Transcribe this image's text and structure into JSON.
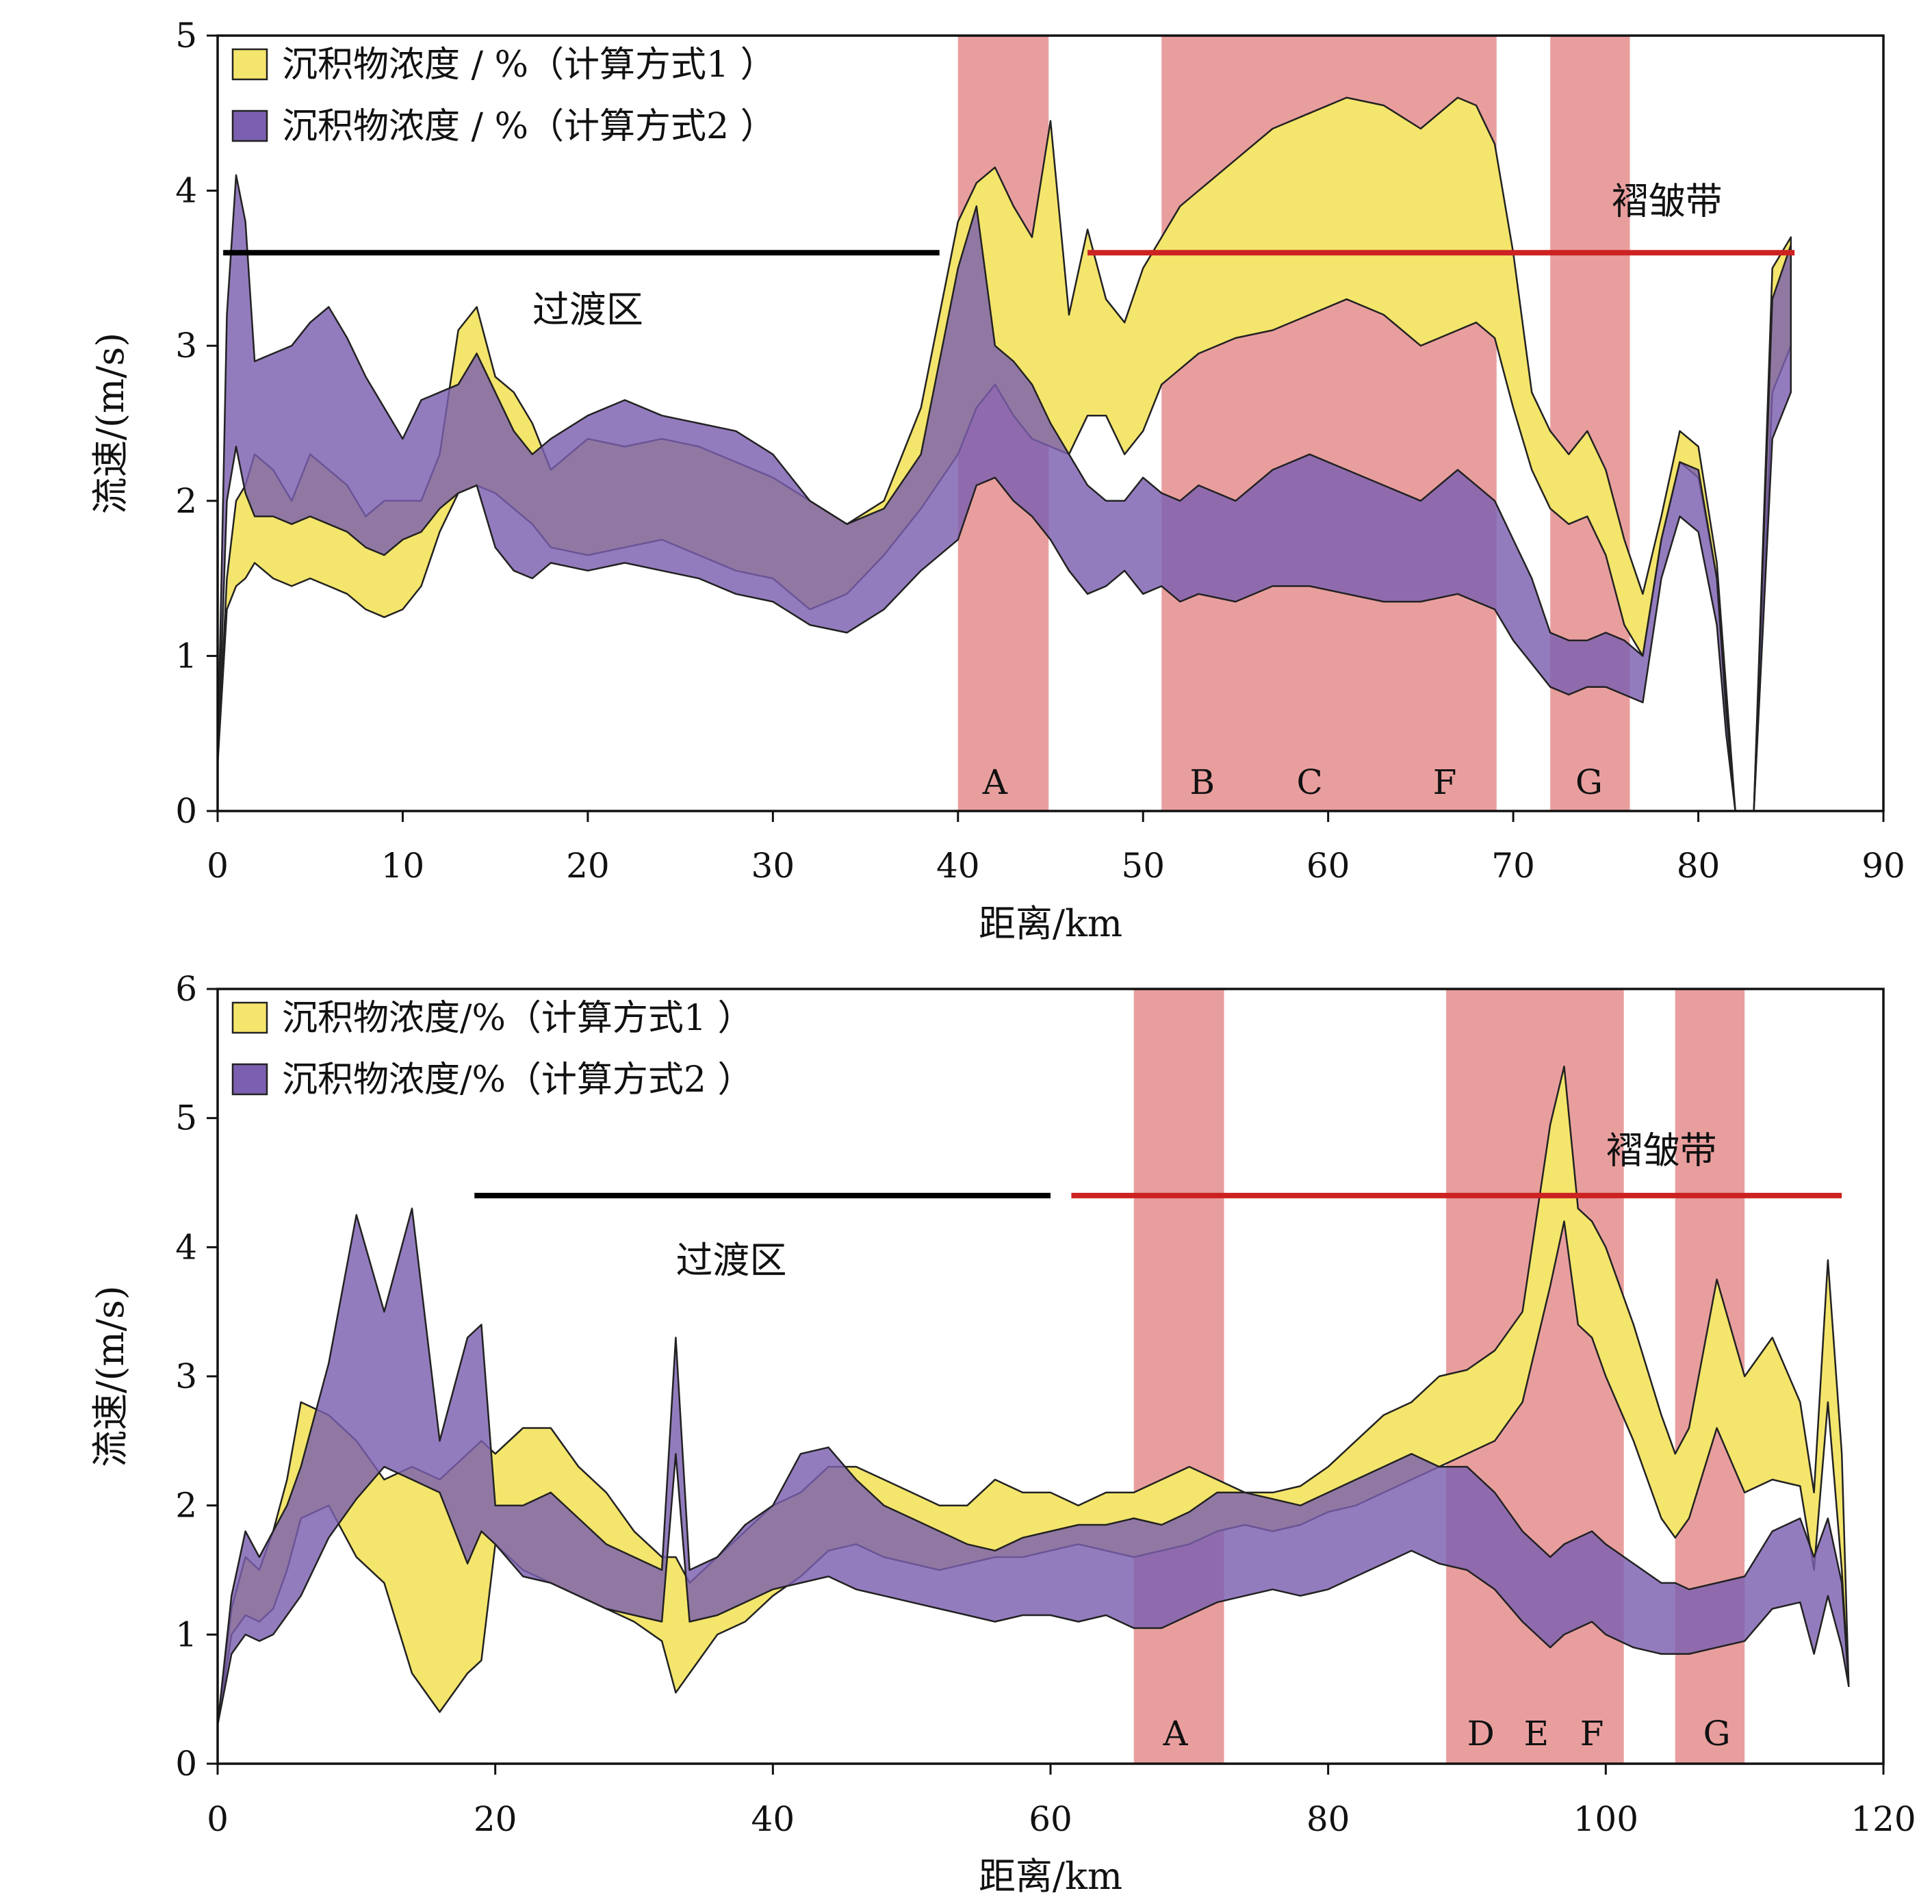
{
  "chart_data": [
    {
      "type": "area",
      "xlabel": "距离/km",
      "ylabel": "流速/(m/s)",
      "xlim": [
        0,
        90
      ],
      "ylim": [
        0,
        5
      ],
      "xticks": [
        0,
        10,
        20,
        30,
        40,
        50,
        60,
        70,
        80,
        90
      ],
      "yticks": [
        0,
        1,
        2,
        3,
        4,
        5
      ],
      "grid": false,
      "legend_position": "top-left",
      "legend": [
        {
          "label": "沉积物浓度 / %（计算方式1 ）",
          "color": "#f4e56c"
        },
        {
          "label": "沉积物浓度 / %（计算方式2 ）",
          "color": "#7b5fb0"
        }
      ],
      "zones": [
        {
          "label": "A",
          "x0": 40.0,
          "x1": 44.9
        },
        {
          "label": "B",
          "x0": 51.0,
          "x1": 69.1
        },
        {
          "label": "G",
          "x0": 72.0,
          "x1": 76.3
        }
      ],
      "zone_labels": [
        {
          "text": "A",
          "x": 42.0
        },
        {
          "text": "B",
          "x": 53.2
        },
        {
          "text": "C",
          "x": 59.0
        },
        {
          "text": "F",
          "x": 66.3
        },
        {
          "text": "G",
          "x": 74.1
        }
      ],
      "ranges": [
        {
          "label": "过渡区",
          "x0": 0.3,
          "x1": 39.0,
          "y": 3.6,
          "color": "#000000",
          "label_x": 20.0,
          "label_y": 3.15
        },
        {
          "label": "褶皱带",
          "x0": 47.0,
          "x1": 85.2,
          "y": 3.6,
          "color": "#cc2222",
          "label_x": 78.3,
          "label_y": 3.85
        }
      ],
      "series": [
        {
          "name": "沉积物浓度 / %（计算方式1 ）",
          "x": [
            0,
            0.5,
            1,
            1.5,
            2,
            3,
            4,
            5,
            6,
            7,
            8,
            9,
            10,
            11,
            12,
            13,
            14,
            15,
            16,
            17,
            18,
            20,
            22,
            24,
            26,
            28,
            30,
            32,
            34,
            36,
            38,
            40,
            41,
            42,
            43,
            44,
            45,
            46,
            47,
            48,
            49,
            50,
            51,
            52,
            53,
            55,
            57,
            59,
            61,
            63,
            65,
            67,
            68,
            69,
            70,
            71,
            72,
            73,
            74,
            75,
            76,
            77,
            78,
            79,
            80,
            81,
            81.5,
            82,
            83,
            84,
            85
          ],
          "upper": [
            0.3,
            1.5,
            2.0,
            2.1,
            2.3,
            2.2,
            2.0,
            2.3,
            2.2,
            2.1,
            1.9,
            2.0,
            2.0,
            2.0,
            2.3,
            3.1,
            3.25,
            2.8,
            2.7,
            2.5,
            2.2,
            2.4,
            2.35,
            2.4,
            2.35,
            2.25,
            2.15,
            2.0,
            1.85,
            2.0,
            2.6,
            3.8,
            4.05,
            4.15,
            3.9,
            3.7,
            4.45,
            3.2,
            3.75,
            3.3,
            3.15,
            3.5,
            3.7,
            3.9,
            4.0,
            4.2,
            4.4,
            4.5,
            4.6,
            4.55,
            4.4,
            4.6,
            4.55,
            4.3,
            3.6,
            2.7,
            2.45,
            2.3,
            2.45,
            2.2,
            1.75,
            1.4,
            1.9,
            2.45,
            2.35,
            1.6,
            0.8,
            0.0,
            0.0,
            3.5,
            3.7
          ],
          "lower": [
            0.3,
            1.3,
            1.45,
            1.5,
            1.6,
            1.5,
            1.45,
            1.5,
            1.45,
            1.4,
            1.3,
            1.25,
            1.3,
            1.45,
            1.8,
            2.05,
            2.1,
            2.05,
            1.95,
            1.85,
            1.7,
            1.65,
            1.7,
            1.75,
            1.65,
            1.55,
            1.5,
            1.3,
            1.4,
            1.65,
            1.95,
            2.3,
            2.6,
            2.75,
            2.55,
            2.4,
            2.35,
            2.3,
            2.55,
            2.55,
            2.3,
            2.45,
            2.75,
            2.85,
            2.95,
            3.05,
            3.1,
            3.2,
            3.3,
            3.2,
            3.0,
            3.1,
            3.15,
            3.05,
            2.6,
            2.2,
            1.95,
            1.85,
            1.9,
            1.65,
            1.2,
            1.0,
            1.75,
            2.25,
            2.15,
            1.5,
            0.7,
            0.0,
            0.0,
            2.7,
            3.0
          ]
        },
        {
          "name": "沉积物浓度 / %（计算方式2 ）",
          "x": [
            0,
            0.5,
            1,
            1.5,
            2,
            3,
            4,
            5,
            6,
            7,
            8,
            9,
            10,
            11,
            12,
            13,
            14,
            15,
            16,
            17,
            18,
            20,
            22,
            24,
            26,
            28,
            30,
            32,
            34,
            36,
            38,
            40,
            41,
            42,
            43,
            44,
            45,
            46,
            47,
            48,
            49,
            50,
            51,
            52,
            53,
            55,
            57,
            59,
            61,
            63,
            65,
            67,
            68,
            69,
            70,
            71,
            72,
            73,
            74,
            75,
            76,
            77,
            78,
            79,
            80,
            81,
            81.5,
            82,
            83,
            84,
            85
          ],
          "upper": [
            0.3,
            3.2,
            4.1,
            3.8,
            2.9,
            2.95,
            3.0,
            3.15,
            3.25,
            3.05,
            2.8,
            2.6,
            2.4,
            2.65,
            2.7,
            2.75,
            2.95,
            2.7,
            2.45,
            2.3,
            2.4,
            2.55,
            2.65,
            2.55,
            2.5,
            2.45,
            2.3,
            2.0,
            1.85,
            1.95,
            2.3,
            3.5,
            3.9,
            3.0,
            2.9,
            2.75,
            2.5,
            2.3,
            2.1,
            2.0,
            2.0,
            2.15,
            2.05,
            2.0,
            2.1,
            2.0,
            2.2,
            2.3,
            2.2,
            2.1,
            2.0,
            2.2,
            2.1,
            2.0,
            1.75,
            1.5,
            1.15,
            1.1,
            1.1,
            1.15,
            1.1,
            1.0,
            1.75,
            2.25,
            2.2,
            1.5,
            0.65,
            0.0,
            0.0,
            3.3,
            3.65
          ],
          "lower": [
            0.3,
            2.0,
            2.35,
            2.05,
            1.9,
            1.9,
            1.85,
            1.9,
            1.85,
            1.8,
            1.7,
            1.65,
            1.75,
            1.8,
            1.95,
            2.05,
            2.1,
            1.7,
            1.55,
            1.5,
            1.6,
            1.55,
            1.6,
            1.55,
            1.5,
            1.4,
            1.35,
            1.2,
            1.15,
            1.3,
            1.55,
            1.75,
            2.1,
            2.15,
            2.0,
            1.9,
            1.75,
            1.55,
            1.4,
            1.45,
            1.55,
            1.4,
            1.45,
            1.35,
            1.4,
            1.35,
            1.45,
            1.45,
            1.4,
            1.35,
            1.35,
            1.4,
            1.35,
            1.3,
            1.1,
            0.95,
            0.8,
            0.75,
            0.8,
            0.8,
            0.75,
            0.7,
            1.5,
            1.9,
            1.8,
            1.2,
            0.5,
            0.0,
            0.0,
            2.4,
            2.7
          ]
        }
      ]
    },
    {
      "type": "area",
      "xlabel": "距离/km",
      "ylabel": "流速/(m/s)",
      "xlim": [
        0,
        120
      ],
      "ylim": [
        0,
        6
      ],
      "xticks": [
        0,
        20,
        40,
        60,
        80,
        100,
        120
      ],
      "yticks": [
        0,
        1,
        2,
        3,
        4,
        5,
        6
      ],
      "grid": false,
      "legend_position": "top-left",
      "legend": [
        {
          "label": "沉积物浓度/%（计算方式1 ）",
          "color": "#f4e56c"
        },
        {
          "label": "沉积物浓度/%（计算方式2 ）",
          "color": "#7b5fb0"
        }
      ],
      "zones": [
        {
          "label": "A",
          "x0": 66.0,
          "x1": 72.5
        },
        {
          "label": "D–F",
          "x0": 88.5,
          "x1": 101.3
        },
        {
          "label": "G",
          "x0": 105.0,
          "x1": 110.0
        }
      ],
      "zone_labels": [
        {
          "text": "A",
          "x": 69.0
        },
        {
          "text": "D",
          "x": 91.0
        },
        {
          "text": "E",
          "x": 95.0
        },
        {
          "text": "F",
          "x": 99.0
        },
        {
          "text": "G",
          "x": 108.0
        }
      ],
      "ranges": [
        {
          "label": "过渡区",
          "x0": 18.5,
          "x1": 60.0,
          "y": 4.4,
          "color": "#000000",
          "label_x": 37.0,
          "label_y": 3.8
        },
        {
          "label": "褶皱带",
          "x0": 61.5,
          "x1": 117.0,
          "y": 4.4,
          "color": "#cc2222",
          "label_x": 104.0,
          "label_y": 4.65
        }
      ],
      "series": [
        {
          "name": "沉积物浓度/%（计算方式1 ）",
          "x": [
            0,
            1,
            2,
            3,
            4,
            5,
            6,
            8,
            10,
            12,
            14,
            16,
            18,
            19,
            20,
            22,
            24,
            26,
            28,
            30,
            32,
            33,
            34,
            36,
            38,
            40,
            42,
            44,
            46,
            48,
            50,
            52,
            54,
            56,
            58,
            60,
            62,
            64,
            66,
            68,
            70,
            72,
            74,
            76,
            78,
            80,
            82,
            84,
            86,
            88,
            90,
            92,
            94,
            96,
            97,
            98,
            99,
            100,
            102,
            104,
            105,
            106,
            108,
            110,
            112,
            114,
            115,
            116,
            117,
            117.5
          ],
          "upper": [
            0.3,
            1.2,
            1.6,
            1.5,
            1.8,
            2.2,
            2.8,
            2.7,
            2.5,
            2.2,
            2.3,
            2.2,
            2.4,
            2.5,
            2.4,
            2.6,
            2.6,
            2.3,
            2.1,
            1.8,
            1.6,
            1.6,
            1.4,
            1.6,
            1.8,
            2.0,
            2.1,
            2.3,
            2.3,
            2.2,
            2.1,
            2.0,
            2.0,
            2.2,
            2.1,
            2.1,
            2.0,
            2.1,
            2.1,
            2.2,
            2.3,
            2.2,
            2.1,
            2.1,
            2.15,
            2.3,
            2.5,
            2.7,
            2.8,
            3.0,
            3.05,
            3.2,
            3.5,
            4.95,
            5.4,
            4.3,
            4.2,
            4.0,
            3.4,
            2.7,
            2.4,
            2.6,
            3.75,
            3.0,
            3.3,
            2.8,
            2.1,
            3.9,
            2.4,
            0.6
          ],
          "lower": [
            0.3,
            1.0,
            1.15,
            1.1,
            1.2,
            1.5,
            1.9,
            2.0,
            1.6,
            1.4,
            0.7,
            0.4,
            0.7,
            0.8,
            1.7,
            1.5,
            1.4,
            1.3,
            1.2,
            1.1,
            0.95,
            0.55,
            0.7,
            1.0,
            1.1,
            1.3,
            1.45,
            1.65,
            1.7,
            1.6,
            1.55,
            1.5,
            1.55,
            1.6,
            1.6,
            1.65,
            1.7,
            1.65,
            1.6,
            1.65,
            1.7,
            1.8,
            1.85,
            1.8,
            1.85,
            1.95,
            2.0,
            2.1,
            2.2,
            2.3,
            2.4,
            2.5,
            2.8,
            3.7,
            4.2,
            3.4,
            3.3,
            3.0,
            2.5,
            1.9,
            1.75,
            1.9,
            2.6,
            2.1,
            2.2,
            2.15,
            1.5,
            2.8,
            1.5,
            0.6
          ]
        },
        {
          "name": "沉积物浓度/%（计算方式2 ）",
          "x": [
            0,
            1,
            2,
            3,
            4,
            5,
            6,
            8,
            10,
            12,
            14,
            16,
            18,
            19,
            20,
            22,
            24,
            26,
            28,
            30,
            32,
            33,
            34,
            36,
            38,
            40,
            42,
            44,
            46,
            48,
            50,
            52,
            54,
            56,
            58,
            60,
            62,
            64,
            66,
            68,
            70,
            72,
            74,
            76,
            78,
            80,
            82,
            84,
            86,
            88,
            90,
            92,
            94,
            96,
            97,
            98,
            99,
            100,
            102,
            104,
            105,
            106,
            108,
            110,
            112,
            114,
            115,
            116,
            117,
            117.5
          ],
          "upper": [
            0.3,
            1.3,
            1.8,
            1.6,
            1.8,
            2.0,
            2.3,
            3.1,
            4.25,
            3.5,
            4.3,
            2.5,
            3.3,
            3.4,
            2.0,
            2.0,
            2.1,
            1.9,
            1.7,
            1.6,
            1.5,
            3.3,
            1.5,
            1.6,
            1.85,
            2.0,
            2.4,
            2.45,
            2.2,
            2.0,
            1.9,
            1.8,
            1.7,
            1.65,
            1.75,
            1.8,
            1.85,
            1.85,
            1.9,
            1.85,
            1.95,
            2.1,
            2.1,
            2.05,
            2.0,
            2.1,
            2.2,
            2.3,
            2.4,
            2.3,
            2.3,
            2.1,
            1.8,
            1.6,
            1.7,
            1.75,
            1.8,
            1.7,
            1.55,
            1.4,
            1.4,
            1.35,
            1.4,
            1.45,
            1.8,
            1.9,
            1.6,
            1.9,
            1.4,
            0.6
          ],
          "lower": [
            0.3,
            0.85,
            1.0,
            0.95,
            1.0,
            1.15,
            1.3,
            1.75,
            2.05,
            2.3,
            2.2,
            2.1,
            1.55,
            1.8,
            1.7,
            1.45,
            1.4,
            1.3,
            1.2,
            1.15,
            1.1,
            2.4,
            1.1,
            1.15,
            1.25,
            1.35,
            1.4,
            1.45,
            1.35,
            1.3,
            1.25,
            1.2,
            1.15,
            1.1,
            1.15,
            1.15,
            1.1,
            1.15,
            1.05,
            1.05,
            1.15,
            1.25,
            1.3,
            1.35,
            1.3,
            1.35,
            1.45,
            1.55,
            1.65,
            1.55,
            1.5,
            1.35,
            1.1,
            0.9,
            1.0,
            1.05,
            1.1,
            1.0,
            0.9,
            0.85,
            0.85,
            0.85,
            0.9,
            0.95,
            1.2,
            1.25,
            0.85,
            1.3,
            0.9,
            0.6
          ]
        }
      ]
    }
  ]
}
